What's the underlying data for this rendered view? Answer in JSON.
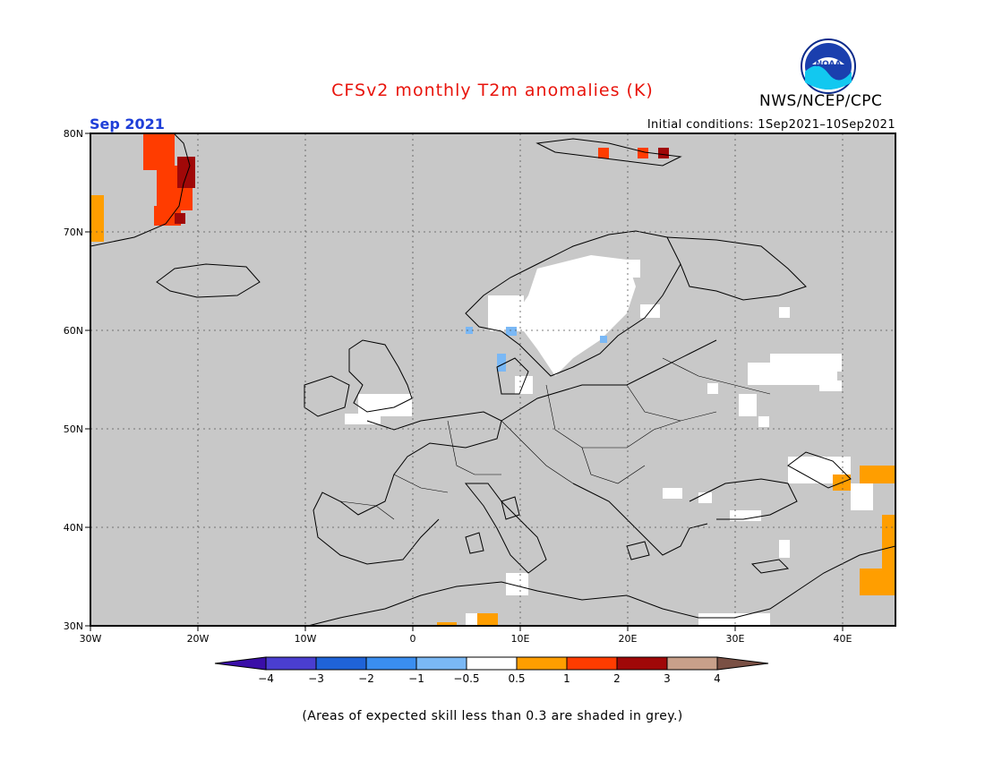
{
  "header": {
    "title": "CFSv2 monthly T2m anomalies (K)",
    "org": "NWS/NCEP/CPC",
    "period": "Sep 2021",
    "initial_conditions": "Initial conditions: 1Sep2021–10Sep2021",
    "logo_text": "NOAA"
  },
  "map": {
    "lon_range": [
      -30,
      45
    ],
    "lat_range": [
      30,
      80
    ],
    "lat_ticks": [
      "30N",
      "40N",
      "50N",
      "60N",
      "70N",
      "80N"
    ],
    "lon_ticks": [
      "30W",
      "20W",
      "10W",
      "0",
      "10E",
      "20E",
      "30E",
      "40E"
    ],
    "grid": true,
    "background_color": "#c8c8c8"
  },
  "legend": {
    "tick_labels": [
      "−4",
      "−3",
      "−2",
      "−1",
      "−0.5",
      "0.5",
      "1",
      "2",
      "3",
      "4"
    ],
    "colors": [
      "#3a0ea8",
      "#4a3ed0",
      "#1f63d8",
      "#3a8ef0",
      "#7ab8f5",
      "#ffffff",
      "#ff9e00",
      "#ff3c00",
      "#a00808",
      "#c8a08a",
      "#7a5044"
    ]
  },
  "footnote": "(Areas of expected skill less than 0.3 are shaded in grey.)"
}
